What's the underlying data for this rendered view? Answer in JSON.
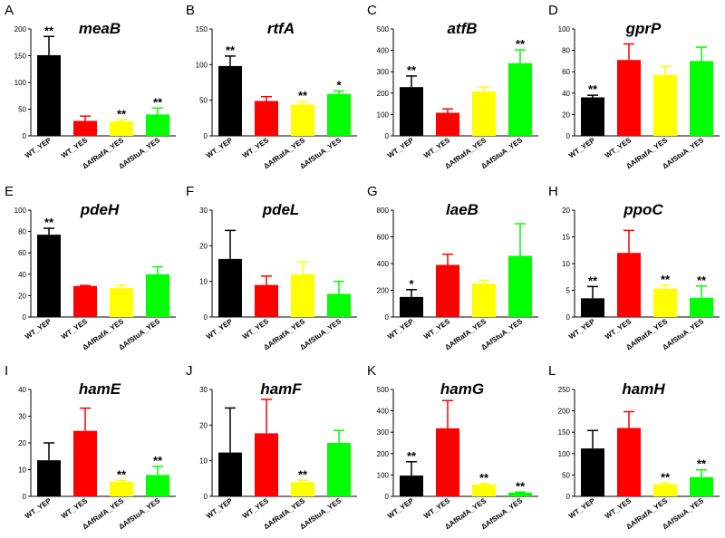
{
  "categories": [
    "WT_YEP",
    "WT_YES",
    "ΔAfRafA_YES",
    "ΔAfStuA_YES"
  ],
  "colors": [
    "#000000",
    "#ff0000",
    "#ffff00",
    "#00ff00"
  ],
  "chart_data": [
    {
      "type": "bar",
      "panel": "A",
      "title": "meaB",
      "ylim": [
        0,
        200
      ],
      "yticks": [
        0,
        50,
        100,
        150,
        200
      ],
      "values": [
        151,
        28,
        27,
        40
      ],
      "errors": [
        35,
        9,
        3,
        12
      ],
      "significance": [
        "**",
        "",
        "**",
        "**"
      ]
    },
    {
      "type": "bar",
      "panel": "B",
      "title": "rtfA",
      "ylim": [
        0,
        150
      ],
      "yticks": [
        0,
        50,
        100,
        150
      ],
      "values": [
        98,
        49,
        44,
        59
      ],
      "errors": [
        14,
        6,
        4,
        4
      ],
      "significance": [
        "**",
        "",
        "**",
        "*"
      ]
    },
    {
      "type": "bar",
      "panel": "C",
      "title": "atfB",
      "ylim": [
        0,
        500
      ],
      "yticks": [
        0,
        100,
        200,
        300,
        400,
        500
      ],
      "values": [
        228,
        108,
        208,
        340
      ],
      "errors": [
        52,
        18,
        20,
        62
      ],
      "significance": [
        "**",
        "",
        "",
        "**"
      ]
    },
    {
      "type": "bar",
      "panel": "D",
      "title": "gprP",
      "ylim": [
        0,
        100
      ],
      "yticks": [
        0,
        20,
        40,
        60,
        80,
        100
      ],
      "values": [
        36,
        71,
        57,
        70
      ],
      "errors": [
        2,
        15,
        8,
        13
      ],
      "significance": [
        "**",
        "",
        "",
        ""
      ]
    },
    {
      "type": "bar",
      "panel": "E",
      "title": "pdeH",
      "ylim": [
        0,
        100
      ],
      "yticks": [
        0,
        20,
        40,
        60,
        80,
        100
      ],
      "values": [
        77,
        29,
        27,
        40
      ],
      "errors": [
        6,
        0.5,
        3,
        7
      ],
      "significance": [
        "**",
        "",
        "",
        ""
      ]
    },
    {
      "type": "bar",
      "panel": "F",
      "title": "pdeL",
      "ylim": [
        0,
        30
      ],
      "yticks": [
        0,
        10,
        20,
        30
      ],
      "values": [
        16.3,
        9,
        12,
        6.5
      ],
      "errors": [
        8,
        2.5,
        3.5,
        3.5
      ],
      "significance": [
        "",
        "",
        "",
        ""
      ]
    },
    {
      "type": "bar",
      "panel": "G",
      "title": "laeB",
      "ylim": [
        0,
        800
      ],
      "yticks": [
        0,
        200,
        400,
        600,
        800
      ],
      "values": [
        150,
        390,
        250,
        458
      ],
      "errors": [
        55,
        80,
        25,
        240
      ],
      "significance": [
        "*",
        "",
        "",
        ""
      ]
    },
    {
      "type": "bar",
      "panel": "H",
      "title": "ppoC",
      "ylim": [
        0,
        20
      ],
      "yticks": [
        0,
        5,
        10,
        15,
        20
      ],
      "values": [
        3.5,
        12,
        5.3,
        3.6
      ],
      "errors": [
        2.2,
        4.2,
        0.6,
        2.2
      ],
      "significance": [
        "**",
        "",
        "**",
        "**"
      ]
    },
    {
      "type": "bar",
      "panel": "I",
      "title": "hamE",
      "ylim": [
        0,
        40
      ],
      "yticks": [
        0,
        10,
        20,
        30,
        40
      ],
      "values": [
        13.5,
        24.5,
        5.5,
        8
      ],
      "errors": [
        6.5,
        8.5,
        0.5,
        3.2
      ],
      "significance": [
        "",
        "",
        "**",
        "**"
      ]
    },
    {
      "type": "bar",
      "panel": "J",
      "title": "hamF",
      "ylim": [
        0,
        30
      ],
      "yticks": [
        0,
        10,
        20,
        30
      ],
      "values": [
        12.3,
        17.7,
        4,
        15
      ],
      "errors": [
        12.5,
        9.5,
        0.5,
        3.5
      ],
      "significance": [
        "",
        "",
        "**",
        ""
      ]
    },
    {
      "type": "bar",
      "panel": "K",
      "title": "hamG",
      "ylim": [
        0,
        500
      ],
      "yticks": [
        0,
        100,
        200,
        300,
        400,
        500
      ],
      "values": [
        97,
        318,
        55,
        17
      ],
      "errors": [
        65,
        130,
        5,
        3
      ],
      "significance": [
        "**",
        "",
        "**",
        "**"
      ]
    },
    {
      "type": "bar",
      "panel": "L",
      "title": "hamH",
      "ylim": [
        0,
        250
      ],
      "yticks": [
        0,
        50,
        100,
        150,
        200,
        250
      ],
      "values": [
        112,
        160,
        28,
        45
      ],
      "errors": [
        42,
        38,
        3,
        17
      ],
      "significance": [
        "",
        "",
        "**",
        "**"
      ]
    }
  ]
}
